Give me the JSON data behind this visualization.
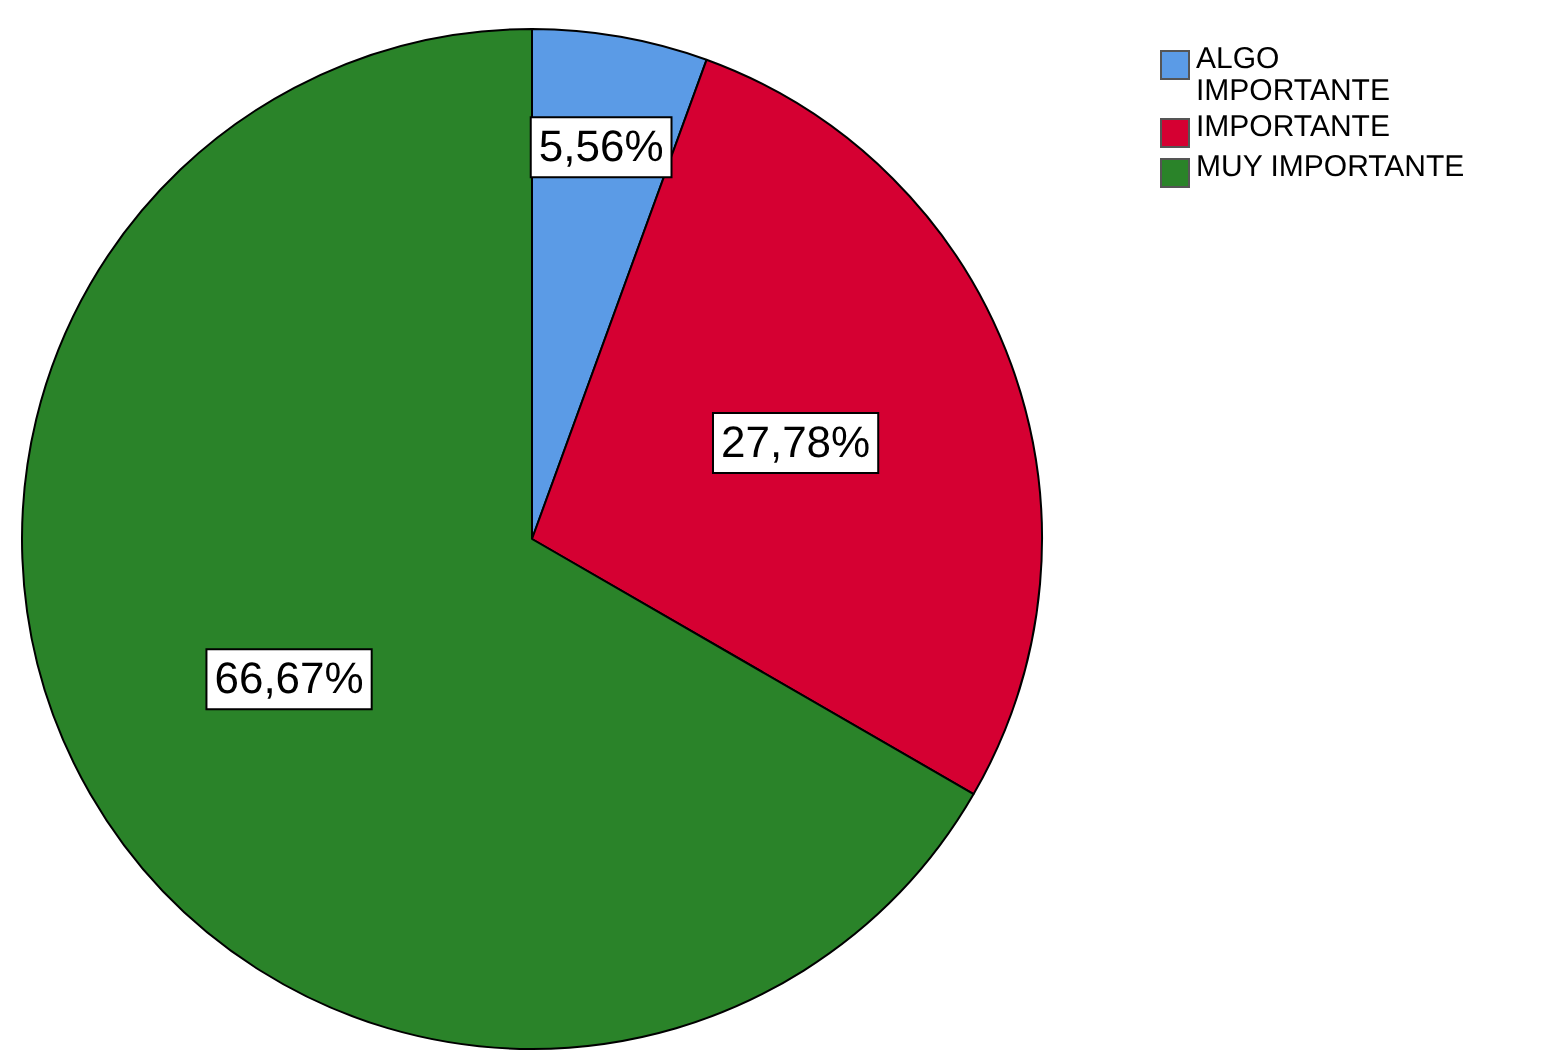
{
  "chart_data": {
    "type": "pie",
    "categories": [
      "ALGO IMPORTANTE",
      "IMPORTANTE",
      "MUY IMPORTANTE"
    ],
    "values": [
      5.56,
      27.78,
      66.67
    ],
    "colors": [
      "#5b9be6",
      "#d50032",
      "#2a8329"
    ],
    "value_labels": [
      "5,56%",
      "27,78%",
      "66,67%"
    ],
    "legend": "top right"
  }
}
